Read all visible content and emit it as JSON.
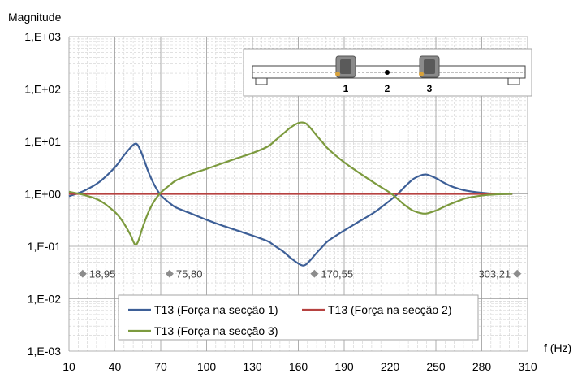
{
  "chart_data": {
    "type": "line",
    "title": "",
    "ylabel": "Magnitude",
    "xlabel": "f (Hz)",
    "y_scale": "log",
    "ylim": [
      0.001,
      1000
    ],
    "y_ticks": [
      0.001,
      0.01,
      0.1,
      1,
      10,
      100,
      1000
    ],
    "y_tick_labels": [
      "1,E-03",
      "1,E-02",
      "1,E-01",
      "1,E+00",
      "1,E+01",
      "1,E+02",
      "1,E+03"
    ],
    "xlim": [
      10,
      310
    ],
    "x_ticks": [
      10,
      40,
      70,
      100,
      130,
      160,
      190,
      220,
      250,
      280,
      310
    ],
    "x_tick_labels": [
      "10",
      "40",
      "70",
      "100",
      "130",
      "160",
      "190",
      "220",
      "250",
      "280",
      "310"
    ],
    "grid": true,
    "legend_position": "bottom-center",
    "series": [
      {
        "name": "T13 (Força na secção 1)",
        "color": "#3d5f97",
        "x": [
          10,
          20,
          30,
          40,
          45,
          50,
          53,
          55,
          58,
          62,
          66,
          70,
          75,
          80,
          90,
          100,
          110,
          120,
          130,
          140,
          145,
          150,
          155,
          160,
          163,
          165,
          168,
          172,
          176,
          180,
          190,
          200,
          210,
          220,
          225,
          230,
          235,
          240,
          243,
          245,
          250,
          255,
          260,
          265,
          270,
          280,
          290,
          300
        ],
        "y": [
          0.9,
          1.15,
          1.7,
          3.2,
          5.0,
          7.5,
          9.0,
          8.5,
          5.5,
          2.6,
          1.45,
          0.95,
          0.7,
          0.55,
          0.42,
          0.32,
          0.25,
          0.2,
          0.16,
          0.125,
          0.1,
          0.08,
          0.06,
          0.047,
          0.043,
          0.045,
          0.055,
          0.075,
          0.1,
          0.13,
          0.2,
          0.3,
          0.45,
          0.75,
          1.0,
          1.4,
          1.9,
          2.25,
          2.35,
          2.3,
          2.0,
          1.65,
          1.4,
          1.25,
          1.15,
          1.05,
          1.0,
          1.0
        ]
      },
      {
        "name": "T13 (Força na secção 2)",
        "color": "#b64240",
        "x": [
          10,
          300
        ],
        "y": [
          1.0,
          1.0
        ]
      },
      {
        "name": "T13 (Força na secção 3)",
        "color": "#7c9a3e",
        "x": [
          10,
          20,
          30,
          40,
          45,
          50,
          53,
          55,
          58,
          62,
          66,
          70,
          75,
          80,
          90,
          100,
          110,
          120,
          130,
          140,
          145,
          150,
          155,
          160,
          163,
          165,
          168,
          172,
          176,
          180,
          190,
          200,
          210,
          220,
          225,
          230,
          235,
          240,
          243,
          245,
          250,
          255,
          260,
          265,
          270,
          280,
          290,
          300
        ],
        "y": [
          1.1,
          0.95,
          0.75,
          0.45,
          0.3,
          0.17,
          0.11,
          0.12,
          0.22,
          0.45,
          0.75,
          1.05,
          1.4,
          1.8,
          2.4,
          3.0,
          3.8,
          4.8,
          6.0,
          8.0,
          10.5,
          14.0,
          18.5,
          22.5,
          23.0,
          22.0,
          18.0,
          13.0,
          9.5,
          7.0,
          4.0,
          2.5,
          1.6,
          1.05,
          0.8,
          0.6,
          0.48,
          0.43,
          0.42,
          0.43,
          0.48,
          0.56,
          0.65,
          0.74,
          0.83,
          0.93,
          0.98,
          1.0
        ]
      }
    ],
    "markers": [
      {
        "x": 18.95,
        "y": 0.03,
        "label": "18,95",
        "label_side": "right"
      },
      {
        "x": 75.8,
        "y": 0.03,
        "label": "75,80",
        "label_side": "right"
      },
      {
        "x": 170.55,
        "y": 0.03,
        "label": "170,55",
        "label_side": "right"
      },
      {
        "x": 303.21,
        "y": 0.03,
        "label": "303,21",
        "label_side": "left"
      }
    ],
    "inset": {
      "points": [
        "1",
        "2",
        "3"
      ]
    }
  }
}
